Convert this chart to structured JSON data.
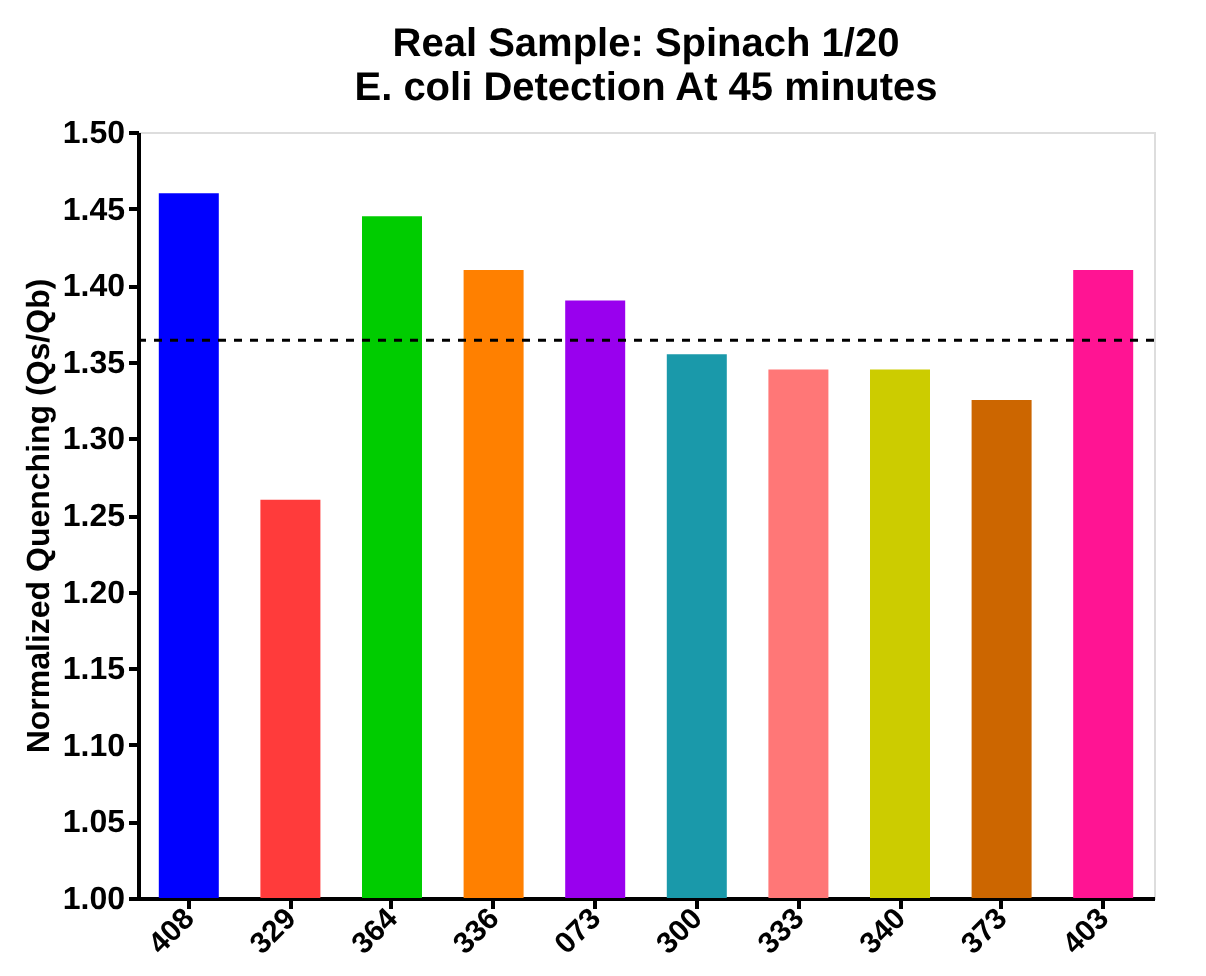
{
  "chart_data": {
    "type": "bar",
    "title": [
      "Real Sample: Spinach 1/20",
      "E. coli Detection At 45 minutes"
    ],
    "ylabel": "Normalized Quenching (Qs/Qb)",
    "categories": [
      "408",
      "329",
      "364",
      "336",
      "073",
      "300",
      "333",
      "340",
      "373",
      "403"
    ],
    "values": [
      1.46,
      1.26,
      1.445,
      1.41,
      1.39,
      1.355,
      1.345,
      1.345,
      1.325,
      1.41
    ],
    "colors": [
      "#0000ff",
      "#ff3b3b",
      "#00cc00",
      "#ff8000",
      "#9900ee",
      "#1a99aa",
      "#ff7777",
      "#cccc00",
      "#cc6600",
      "#ff1493"
    ],
    "ylim": [
      1.0,
      1.5
    ],
    "yticks": [
      {
        "value": 1.0,
        "label": "1.00"
      },
      1.05,
      {
        "value": 1.1,
        "label": "1.10"
      },
      1.15,
      {
        "value": 1.2,
        "label": "1.20"
      },
      1.25,
      {
        "value": 1.3,
        "label": "1.30"
      },
      1.35,
      {
        "value": 1.4,
        "label": "1.40"
      },
      1.45,
      {
        "value": 1.5,
        "label": "1.50"
      }
    ],
    "ref_lines": [
      {
        "axis": "y",
        "value": 1.364,
        "line_style": "dashed",
        "color": "#000000"
      }
    ],
    "grid": false
  }
}
